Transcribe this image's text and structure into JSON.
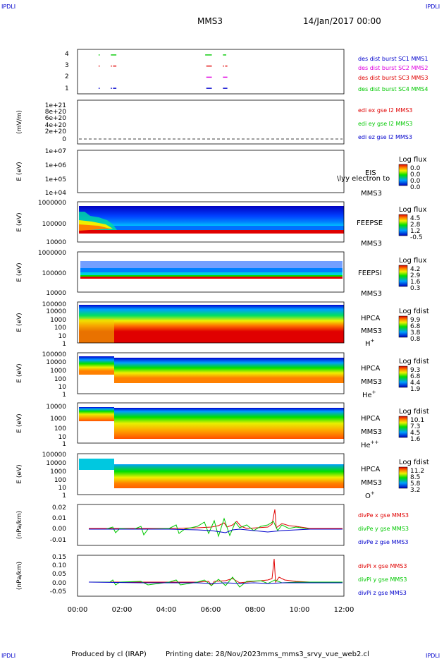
{
  "corner_marks": {
    "top_left": "IPDLI",
    "top_right": "IPDLI",
    "bottom_left": "IPDLI",
    "bottom_right": "IPDLI"
  },
  "header": {
    "spacecraft": "MMS3",
    "date": "14/Jan/2017 00:00"
  },
  "footer": {
    "produced_by": "Produced by cl (IRAP)",
    "printing_date": "Printing date: 28/Nov/2023",
    "filename": "mms_mms3_srvy_vue_web2.cl"
  },
  "colors": {
    "red": "#e00000",
    "green": "#00c800",
    "blue": "#0000cc",
    "magenta": "#e000e0",
    "dark": "#000000"
  },
  "chart_data": [
    {
      "type": "scatter",
      "panel": "burst",
      "ylim": [
        0.5,
        4.5
      ],
      "ytick_labels": [
        "1",
        "2",
        "3",
        "4"
      ],
      "legend": [
        {
          "label": "des dist burst SC1 MMS1",
          "color": "#0000cc"
        },
        {
          "label": "des dist burst SC2 MMS2",
          "color": "#e000e0"
        },
        {
          "label": "des dist burst SC3 MMS3",
          "color": "#e00000"
        },
        {
          "label": "des dist burst SC4 MMS4",
          "color": "#00c800"
        }
      ],
      "series": [
        {
          "name": "des dist burst SC4 MMS4",
          "y": 4,
          "color": "#00c800",
          "intervals": [
            [
              0.95,
              1.0
            ],
            [
              1.5,
              1.75
            ],
            [
              5.75,
              6.05
            ],
            [
              6.55,
              6.7
            ]
          ]
        },
        {
          "name": "des dist burst SC3 MMS3",
          "y": 3,
          "color": "#e00000",
          "intervals": [
            [
              0.95,
              1.0
            ],
            [
              1.5,
              1.55
            ],
            [
              1.6,
              1.75
            ],
            [
              5.8,
              6.05
            ],
            [
              6.55,
              6.6
            ],
            [
              6.65,
              6.75
            ]
          ]
        },
        {
          "name": "des dist burst SC2 MMS2",
          "y": 2,
          "color": "#e000e0",
          "intervals": [
            [
              5.8,
              6.05
            ],
            [
              6.55,
              6.75
            ]
          ]
        },
        {
          "name": "des dist burst SC1 MMS1",
          "y": 1,
          "color": "#0000cc",
          "intervals": [
            [
              0.95,
              1.0
            ],
            [
              1.5,
              1.55
            ],
            [
              1.6,
              1.75
            ],
            [
              5.8,
              6.05
            ],
            [
              6.55,
              6.75
            ]
          ]
        }
      ]
    },
    {
      "type": "line",
      "panel": "edi",
      "ylabel": "(mV/m)",
      "ylim": [
        0,
        1e+21
      ],
      "ytick_labels": [
        "0",
        "2e+20",
        "4e+20",
        "6e+20",
        "8e+20",
        "1e+21"
      ],
      "legend": [
        {
          "label": "edi ex gse l2 MMS3",
          "color": "#e00000"
        },
        {
          "label": "edi ey gse l2 MMS3",
          "color": "#00c800"
        },
        {
          "label": "edi ez gse l2 MMS3",
          "color": "#0000cc"
        }
      ]
    },
    {
      "type": "heatmap",
      "panel": "eis",
      "ylabel": "E (eV)",
      "ytick_labels": [
        "1e+07",
        "1e+06",
        "1e+05",
        "1e+04"
      ],
      "instrument": "EIS",
      "instrument_note": "\\lyy electron to",
      "spacecraft": "MMS3",
      "colorbar_title": "Log flux",
      "colorbar_ticks": [
        "0.0",
        "0.0",
        "0.0",
        "0.0"
      ]
    },
    {
      "type": "heatmap",
      "panel": "feepse",
      "ylabel": "E (eV)",
      "ytick_labels": [
        "1000000",
        "100000",
        "10000"
      ],
      "instrument": "FEEPSE",
      "spacecraft": "MMS3",
      "colorbar_title": "Log flux",
      "colorbar_ticks": [
        "4.5",
        "2.8",
        "1.2",
        "-0.5"
      ]
    },
    {
      "type": "heatmap",
      "panel": "feepsi",
      "ylabel": "E (eV)",
      "ytick_labels": [
        "1000000",
        "100000",
        "10000"
      ],
      "instrument": "FEEPSI",
      "spacecraft": "MMS3",
      "colorbar_title": "Log flux",
      "colorbar_ticks": [
        "4.2",
        "2.9",
        "1.6",
        "0.3"
      ]
    },
    {
      "type": "heatmap",
      "panel": "hpca_h",
      "ylabel": "E (eV)",
      "ytick_labels": [
        "100000",
        "10000",
        "1000",
        "100",
        "10",
        "1"
      ],
      "instrument": "HPCA",
      "spacecraft": "MMS3",
      "species": "H",
      "species_charge": "+",
      "colorbar_title": "Log fdist",
      "colorbar_ticks": [
        "9.9",
        "6.8",
        "3.8",
        "0.8"
      ]
    },
    {
      "type": "heatmap",
      "panel": "hpca_he1",
      "ylabel": "E (eV)",
      "ytick_labels": [
        "100000",
        "10000",
        "1000",
        "100",
        "10",
        "1"
      ],
      "instrument": "HPCA",
      "spacecraft": "MMS3",
      "species": "He",
      "species_charge": "+",
      "colorbar_title": "Log fdist",
      "colorbar_ticks": [
        "9.3",
        "6.8",
        "4.4",
        "1.9"
      ]
    },
    {
      "type": "heatmap",
      "panel": "hpca_he2",
      "ylabel": "E (eV)",
      "ytick_labels": [
        "10000",
        "1000",
        "100",
        "10",
        "1"
      ],
      "instrument": "HPCA",
      "spacecraft": "MMS3",
      "species": "He",
      "species_charge": "++",
      "colorbar_title": "Log fdist",
      "colorbar_ticks": [
        "10.1",
        "7.3",
        "4.5",
        "1.6"
      ]
    },
    {
      "type": "heatmap",
      "panel": "hpca_o",
      "ylabel": "E (eV)",
      "ytick_labels": [
        "100000",
        "10000",
        "1000",
        "100",
        "10",
        "1"
      ],
      "instrument": "HPCA",
      "spacecraft": "MMS3",
      "species": "O",
      "species_charge": "+",
      "colorbar_title": "Log fdist",
      "colorbar_ticks": [
        "11.2",
        "8.5",
        "5.8",
        "3.2"
      ]
    },
    {
      "type": "line",
      "panel": "divpe",
      "ylabel": "(nPa/km)",
      "ylim": [
        -0.015,
        0.02
      ],
      "ytick_labels": [
        "0.02",
        "0.01",
        "0.00",
        "-0.01"
      ],
      "legend": [
        {
          "label": "divPe x gse MMS3",
          "color": "#e00000"
        },
        {
          "label": "divPe y gse MMS3",
          "color": "#00c800"
        },
        {
          "label": "divPe z gse MMS3",
          "color": "#0000cc"
        }
      ]
    },
    {
      "type": "line",
      "panel": "divpi",
      "ylabel": "(nPa/km)",
      "ylim": [
        -0.07,
        0.15
      ],
      "ytick_labels": [
        "0.15",
        "0.10",
        "0.05",
        "0.00",
        "-0.05"
      ],
      "legend": [
        {
          "label": "divPi x gse MMS3",
          "color": "#e00000"
        },
        {
          "label": "divPi y gse MMS3",
          "color": "#00c800"
        },
        {
          "label": "divPi z gse MMS3",
          "color": "#0000cc"
        }
      ]
    }
  ],
  "time_axis": {
    "xlim": [
      0,
      12
    ],
    "tick_labels": [
      "00:00",
      "02:00",
      "04:00",
      "06:00",
      "08:00",
      "10:00",
      "12:00"
    ]
  }
}
